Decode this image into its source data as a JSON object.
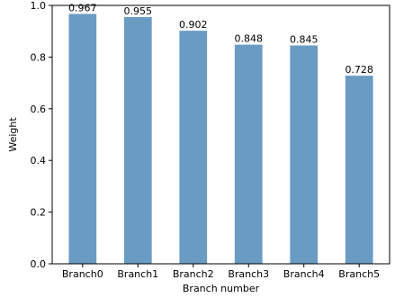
{
  "chart_data": {
    "type": "bar",
    "categories": [
      "Branch0",
      "Branch1",
      "Branch2",
      "Branch3",
      "Branch4",
      "Branch5"
    ],
    "values": [
      0.967,
      0.955,
      0.902,
      0.848,
      0.845,
      0.728
    ],
    "data_labels": [
      "0.967",
      "0.955",
      "0.902",
      "0.848",
      "0.845",
      "0.728"
    ],
    "title": "",
    "xlabel": "Branch number",
    "ylabel": "Weight",
    "ylim": [
      0,
      1.0
    ],
    "yticks": [
      "0.0",
      "0.2",
      "0.4",
      "0.6",
      "0.8",
      "1.0"
    ],
    "grid": false,
    "legend": "none",
    "bar_color": "#6a9bc3"
  }
}
